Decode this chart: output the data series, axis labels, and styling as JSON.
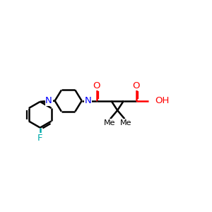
{
  "background": "#ffffff",
  "bond_color": "#000000",
  "heteroatom_color": "#ff0000",
  "nitrogen_color": "#0000ff",
  "fluorine_color": "#00aaaa",
  "bond_width": 1.8,
  "figsize": [
    3.0,
    3.0
  ],
  "dpi": 100,
  "xlim": [
    0,
    12
  ],
  "ylim": [
    0,
    10
  ]
}
